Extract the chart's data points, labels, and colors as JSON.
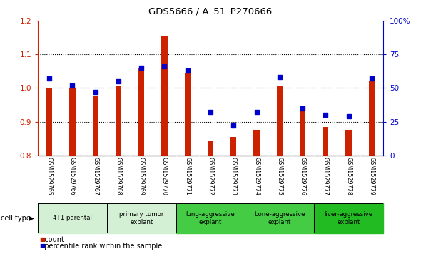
{
  "title": "GDS5666 / A_51_P270666",
  "samples": [
    "GSM1529765",
    "GSM1529766",
    "GSM1529767",
    "GSM1529768",
    "GSM1529769",
    "GSM1529770",
    "GSM1529771",
    "GSM1529772",
    "GSM1529773",
    "GSM1529774",
    "GSM1529775",
    "GSM1529776",
    "GSM1529777",
    "GSM1529778",
    "GSM1529779"
  ],
  "bar_values": [
    1.0,
    1.0,
    0.975,
    1.005,
    1.06,
    1.155,
    1.045,
    0.845,
    0.855,
    0.875,
    1.005,
    0.945,
    0.885,
    0.875,
    1.02
  ],
  "percentile_values": [
    57,
    52,
    47,
    55,
    65,
    66,
    63,
    32,
    22,
    32,
    58,
    35,
    30,
    29,
    57
  ],
  "bar_color": "#cc2200",
  "dot_color": "#0000cc",
  "ylim_left": [
    0.8,
    1.2
  ],
  "ylim_right": [
    0,
    100
  ],
  "yticks_left": [
    0.8,
    0.9,
    1.0,
    1.1,
    1.2
  ],
  "yticks_right": [
    0,
    25,
    50,
    75,
    100
  ],
  "yticklabels_right": [
    "0",
    "25",
    "50",
    "75",
    "100%"
  ],
  "grid_values": [
    0.9,
    1.0,
    1.1
  ],
  "cell_groups": [
    {
      "label": "4T1 parental",
      "indices": [
        0,
        1,
        2
      ],
      "color": "#d4f0d4"
    },
    {
      "label": "primary tumor\nexplant",
      "indices": [
        3,
        4,
        5
      ],
      "color": "#d4f0d4"
    },
    {
      "label": "lung-aggressive\nexplant",
      "indices": [
        6,
        7,
        8
      ],
      "color": "#44cc44"
    },
    {
      "label": "bone-aggressive\nexplant",
      "indices": [
        9,
        10,
        11
      ],
      "color": "#44cc44"
    },
    {
      "label": "liver-aggressive\nexplant",
      "indices": [
        12,
        13,
        14
      ],
      "color": "#22bb22"
    }
  ],
  "gsm_bg_color": "#c8c8c8",
  "cell_type_label": "cell type",
  "legend_count_label": "count",
  "legend_percentile_label": "percentile rank within the sample",
  "bar_width": 0.25,
  "baseline": 0.8
}
